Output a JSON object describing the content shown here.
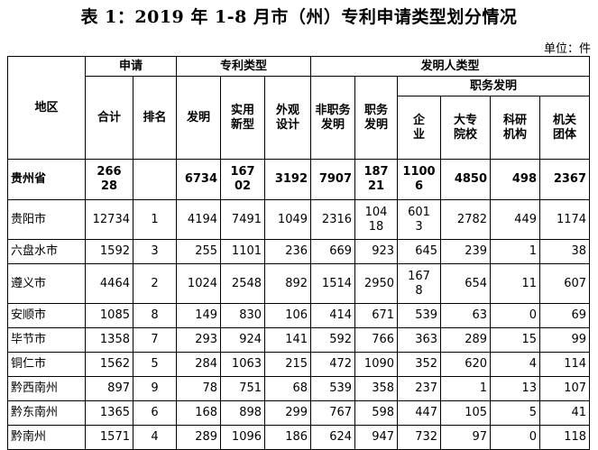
{
  "title": "表 1：2019 年 1-8 月市（州）专利申请类型划分情况",
  "unit": "单位：件",
  "headers": {
    "region": "地区",
    "apply": "申请",
    "patent_type": "专利类型",
    "inventor_type": "发明人类型",
    "service_invention": "职务发明",
    "total": "合计",
    "rank": "排名",
    "invention": "发明",
    "utility": "实用新型",
    "design": "外观设计",
    "non_service": "非职务发明",
    "service": "职务发明",
    "enterprise": "企业",
    "university": "大专院校",
    "research": "科研机构",
    "government": "机关团体"
  },
  "rows": [
    {
      "region": "贵州省",
      "total": "26628",
      "rank": "",
      "invention": "6734",
      "utility": "16702",
      "design": "3192",
      "non_service": "7907",
      "service": "18721",
      "enterprise": "11006",
      "university": "4850",
      "research": "498",
      "government": "2367"
    },
    {
      "region": "贵阳市",
      "total": "12734",
      "rank": "1",
      "invention": "4194",
      "utility": "7491",
      "design": "1049",
      "non_service": "2316",
      "service": "10418",
      "enterprise": "6013",
      "university": "2782",
      "research": "449",
      "government": "1174"
    },
    {
      "region": "六盘水市",
      "total": "1592",
      "rank": "3",
      "invention": "255",
      "utility": "1101",
      "design": "236",
      "non_service": "669",
      "service": "923",
      "enterprise": "645",
      "university": "239",
      "research": "1",
      "government": "38"
    },
    {
      "region": "遵义市",
      "total": "4464",
      "rank": "2",
      "invention": "1024",
      "utility": "2548",
      "design": "892",
      "non_service": "1514",
      "service": "2950",
      "enterprise": "1678",
      "university": "654",
      "research": "11",
      "government": "607"
    },
    {
      "region": "安顺市",
      "total": "1085",
      "rank": "8",
      "invention": "149",
      "utility": "830",
      "design": "106",
      "non_service": "414",
      "service": "671",
      "enterprise": "539",
      "university": "63",
      "research": "0",
      "government": "69"
    },
    {
      "region": "毕节市",
      "total": "1358",
      "rank": "7",
      "invention": "293",
      "utility": "924",
      "design": "141",
      "non_service": "592",
      "service": "766",
      "enterprise": "363",
      "university": "289",
      "research": "15",
      "government": "99"
    },
    {
      "region": "铜仁市",
      "total": "1562",
      "rank": "5",
      "invention": "284",
      "utility": "1063",
      "design": "215",
      "non_service": "472",
      "service": "1090",
      "enterprise": "352",
      "university": "620",
      "research": "4",
      "government": "114"
    },
    {
      "region": "黔西南州",
      "total": "897",
      "rank": "9",
      "invention": "78",
      "utility": "751",
      "design": "68",
      "non_service": "539",
      "service": "358",
      "enterprise": "237",
      "university": "1",
      "research": "13",
      "government": "107"
    },
    {
      "region": "黔东南州",
      "total": "1365",
      "rank": "6",
      "invention": "168",
      "utility": "898",
      "design": "299",
      "non_service": "767",
      "service": "598",
      "enterprise": "447",
      "university": "105",
      "research": "5",
      "government": "41"
    },
    {
      "region": "黔南州",
      "total": "1571",
      "rank": "4",
      "invention": "289",
      "utility": "1096",
      "design": "186",
      "non_service": "624",
      "service": "947",
      "enterprise": "732",
      "university": "97",
      "research": "0",
      "government": "118"
    }
  ]
}
